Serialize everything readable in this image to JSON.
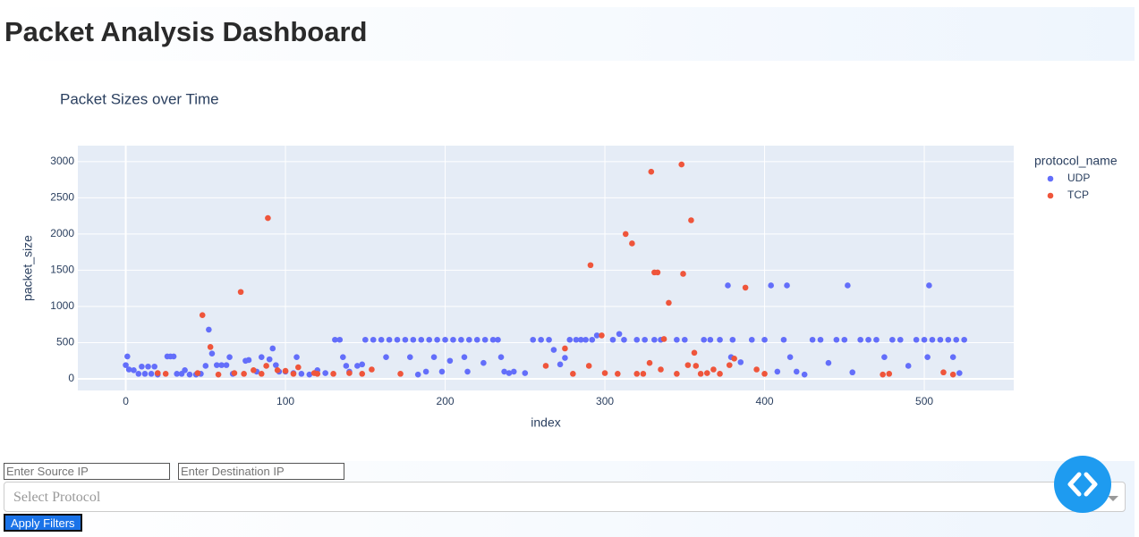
{
  "header": {
    "title": "Packet Analysis Dashboard"
  },
  "chart_data": {
    "type": "scatter",
    "title": "Packet Sizes over Time",
    "x_label": "index",
    "y_label": "packet_size",
    "legend_title": "protocol_name",
    "legend": "right",
    "grid": true,
    "xlim": [
      -30,
      556
    ],
    "ylim": [
      -160,
      3220
    ],
    "xticks": [
      0,
      100,
      200,
      300,
      400,
      500
    ],
    "yticks": [
      0,
      500,
      1000,
      1500,
      2000,
      2500,
      3000
    ],
    "series": [
      {
        "name": "UDP",
        "color": "#636efa",
        "x": [
          0,
          1,
          2,
          5,
          8,
          10,
          12,
          14,
          16,
          18,
          20,
          26,
          28,
          30,
          32,
          35,
          37,
          40,
          44,
          47,
          50,
          52,
          54,
          57,
          60,
          63,
          65,
          67,
          75,
          77,
          82,
          85,
          90,
          92,
          94,
          96,
          100,
          105,
          107,
          110,
          115,
          120,
          125,
          131,
          134,
          136,
          138,
          140,
          145,
          148,
          150,
          155,
          160,
          163,
          165,
          170,
          175,
          178,
          180,
          183,
          185,
          188,
          190,
          193,
          195,
          198,
          200,
          203,
          205,
          210,
          212,
          214,
          215,
          220,
          224,
          225,
          230,
          233,
          235,
          237,
          240,
          243,
          250,
          255,
          260,
          265,
          268,
          272,
          275,
          278,
          282,
          285,
          288,
          292,
          295,
          305,
          309,
          312,
          320,
          325,
          331,
          335,
          345,
          350,
          362,
          366,
          372,
          377,
          379,
          380,
          385,
          392,
          400,
          404,
          408,
          412,
          414,
          416,
          420,
          425,
          430,
          435,
          440,
          445,
          450,
          452,
          455,
          460,
          465,
          470,
          475,
          480,
          485,
          490,
          495,
          500,
          502,
          503,
          505,
          510,
          515,
          518,
          520,
          522,
          525
        ],
        "values": [
          190,
          310,
          130,
          120,
          70,
          170,
          70,
          170,
          70,
          170,
          60,
          310,
          310,
          310,
          70,
          70,
          120,
          60,
          60,
          70,
          180,
          680,
          350,
          190,
          190,
          190,
          300,
          70,
          250,
          260,
          100,
          300,
          270,
          420,
          190,
          100,
          100,
          80,
          300,
          70,
          60,
          120,
          80,
          540,
          540,
          300,
          180,
          100,
          180,
          200,
          540,
          540,
          540,
          300,
          540,
          540,
          540,
          300,
          540,
          60,
          540,
          100,
          540,
          300,
          540,
          100,
          540,
          250,
          540,
          540,
          300,
          100,
          540,
          540,
          220,
          540,
          540,
          540,
          300,
          100,
          80,
          100,
          80,
          540,
          540,
          540,
          400,
          200,
          290,
          540,
          540,
          540,
          540,
          540,
          600,
          540,
          620,
          540,
          540,
          540,
          540,
          540,
          540,
          540,
          540,
          540,
          540,
          1290,
          300,
          540,
          230,
          540,
          540,
          1290,
          100,
          540,
          1290,
          300,
          100,
          60,
          540,
          540,
          220,
          540,
          540,
          1290,
          90,
          540,
          540,
          540,
          300,
          540,
          540,
          180,
          540,
          540,
          300,
          1290,
          540,
          540,
          540,
          300,
          540,
          80,
          540
        ]
      },
      {
        "name": "TCP",
        "color": "#EF553B",
        "x": [
          20,
          25,
          45,
          48,
          53,
          58,
          68,
          72,
          74,
          80,
          85,
          88,
          89,
          95,
          100,
          105,
          108,
          118,
          120,
          130,
          140,
          148,
          154,
          172,
          263,
          275,
          280,
          290,
          291,
          298,
          300,
          308,
          313,
          317,
          320,
          324,
          328,
          329,
          331,
          333,
          335,
          337,
          340,
          345,
          348,
          349,
          352,
          354,
          356,
          357,
          360,
          364,
          368,
          372,
          378,
          381,
          388,
          395,
          400,
          474,
          478,
          512,
          518
        ],
        "values": [
          80,
          70,
          80,
          880,
          440,
          60,
          80,
          1200,
          70,
          120,
          70,
          180,
          2220,
          120,
          110,
          70,
          160,
          80,
          70,
          70,
          80,
          70,
          130,
          70,
          180,
          420,
          70,
          180,
          1570,
          600,
          80,
          70,
          2000,
          1870,
          70,
          70,
          220,
          2860,
          1470,
          1470,
          130,
          550,
          1050,
          70,
          2960,
          1450,
          190,
          2190,
          360,
          180,
          70,
          80,
          130,
          70,
          190,
          280,
          1260,
          130,
          70,
          60,
          70,
          90,
          60
        ]
      }
    ]
  },
  "controls": {
    "source_ip": "Enter Source IP",
    "destination_ip": "Enter Destination IP",
    "protocol": "Select Protocol",
    "apply": "Apply Filters"
  }
}
